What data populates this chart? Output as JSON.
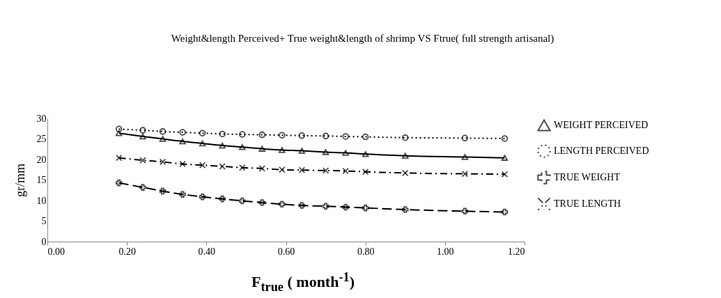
{
  "chart_data": {
    "type": "line",
    "title": "Weight&length Perceived+ True weight&length of shrimp VS Ftrue( full strength artisanal)",
    "xlabel": "F$_{true}$ ( month$^{-1}$)",
    "ylabel": "gr/mm",
    "x": [
      0.18,
      0.24,
      0.29,
      0.34,
      0.39,
      0.44,
      0.49,
      0.54,
      0.59,
      0.64,
      0.7,
      0.75,
      0.8,
      0.9,
      1.05,
      1.15
    ],
    "series": [
      {
        "name": "WEIGHT PERCEIVED",
        "color": "#000000",
        "marker": "triangle",
        "line_style": "solid",
        "values": [
          26.4,
          25.6,
          25.0,
          24.4,
          23.9,
          23.4,
          23.0,
          22.6,
          22.3,
          22.1,
          21.8,
          21.6,
          21.3,
          20.9,
          20.6,
          20.4
        ]
      },
      {
        "name": "LENGTH PERCEIVED",
        "color": "#000000",
        "marker": "circle",
        "line_style": "dotted",
        "values": [
          27.4,
          27.1,
          26.8,
          26.6,
          26.4,
          26.2,
          26.1,
          26.0,
          25.9,
          25.8,
          25.7,
          25.6,
          25.5,
          25.3,
          25.2,
          25.1
        ]
      },
      {
        "name": "TRUE WEIGHT",
        "color": "#000000",
        "marker": "cross",
        "line_style": "dashed",
        "values": [
          14.3,
          13.2,
          12.3,
          11.5,
          10.9,
          10.4,
          9.9,
          9.5,
          9.1,
          8.8,
          8.6,
          8.4,
          8.2,
          7.8,
          7.4,
          7.2
        ]
      },
      {
        "name": "TRUE LENGTH",
        "color": "#000000",
        "marker": "x",
        "line_style": "dashdot",
        "values": [
          20.4,
          19.8,
          19.4,
          18.9,
          18.6,
          18.3,
          18.0,
          17.8,
          17.5,
          17.4,
          17.3,
          17.2,
          17.0,
          16.7,
          16.5,
          16.4
        ]
      }
    ],
    "xlim": [
      0,
      1.2
    ],
    "xticks": [
      {
        "value": 0,
        "label": "0.00"
      },
      {
        "value": 0.2,
        "label": "0.20"
      },
      {
        "value": 0.4,
        "label": "0.40"
      },
      {
        "value": 0.6,
        "label": "0.60"
      },
      {
        "value": 0.8,
        "label": "0.80"
      },
      {
        "value": 1.0,
        "label": "1.00"
      },
      {
        "value": 1.2,
        "label": "1.20"
      }
    ],
    "ylim": [
      0,
      30
    ],
    "yticks": [
      0,
      5,
      10,
      15,
      20,
      25,
      30
    ],
    "grid": false,
    "legend": "right"
  }
}
